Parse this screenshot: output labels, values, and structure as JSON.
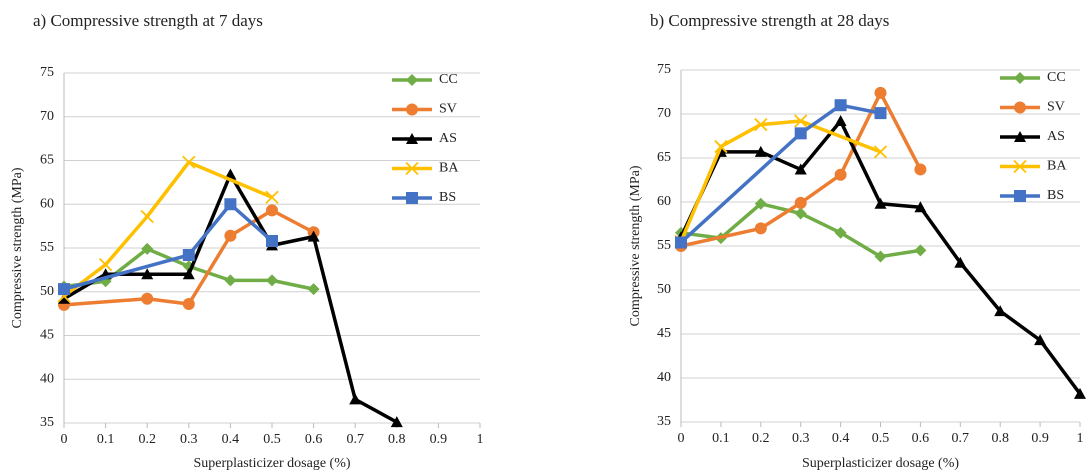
{
  "chart_data": [
    {
      "type": "line",
      "title": "a) Compressive strength at 7 days",
      "x_label": "Superplasticizer dosage (%)",
      "y_label": "Compressive strength (MPa)",
      "xlim": [
        0,
        1
      ],
      "xticks": [
        0,
        0.1,
        0.2,
        0.3,
        0.4,
        0.5,
        0.6,
        0.7,
        0.8,
        0.9,
        1
      ],
      "ylim": [
        35,
        75
      ],
      "yticks": [
        35,
        40,
        45,
        50,
        55,
        60,
        65,
        70,
        75
      ],
      "grid": true,
      "legend": "upper right",
      "series": [
        {
          "name": "CC",
          "color": "#70ad47",
          "marker": "diamond",
          "x": [
            0,
            0.1,
            0.2,
            0.3,
            0.4,
            0.5,
            0.6
          ],
          "values": [
            50.6,
            51.2,
            54.9,
            52.9,
            51.3,
            51.3,
            50.3
          ]
        },
        {
          "name": "SV",
          "color": "#ed7d31",
          "marker": "circle",
          "x": [
            0,
            0.2,
            0.3,
            0.4,
            0.5,
            0.6
          ],
          "values": [
            48.5,
            49.2,
            48.6,
            56.4,
            59.3,
            56.8
          ]
        },
        {
          "name": "AS",
          "color": "#000000",
          "marker": "triangle",
          "x": [
            0,
            0.1,
            0.2,
            0.3,
            0.4,
            0.5,
            0.6,
            0.7,
            0.8
          ],
          "values": [
            49.2,
            52.0,
            52.0,
            52.0,
            63.4,
            55.3,
            56.3,
            37.7,
            35.1
          ]
        },
        {
          "name": "BA",
          "color": "#ffc000",
          "marker": "x",
          "x": [
            0,
            0.1,
            0.2,
            0.3,
            0.5
          ],
          "values": [
            49.5,
            53.1,
            58.6,
            64.8,
            60.8
          ]
        },
        {
          "name": "BS",
          "color": "#4472c4",
          "marker": "square",
          "x": [
            0,
            0.3,
            0.4,
            0.5
          ],
          "values": [
            50.3,
            54.2,
            60.0,
            55.8
          ]
        }
      ]
    },
    {
      "type": "line",
      "title": "b) Compressive strength at 28 days",
      "x_label": "Superplasticizer dosage (%)",
      "y_label": "Compressive strength (MPa)",
      "xlim": [
        0,
        1
      ],
      "xticks": [
        0,
        0.1,
        0.2,
        0.3,
        0.4,
        0.5,
        0.6,
        0.7,
        0.8,
        0.9,
        1
      ],
      "ylim": [
        35,
        75
      ],
      "yticks": [
        35,
        40,
        45,
        50,
        55,
        60,
        65,
        70,
        75
      ],
      "grid": true,
      "legend": "upper right",
      "series": [
        {
          "name": "CC",
          "color": "#70ad47",
          "marker": "diamond",
          "x": [
            0,
            0.1,
            0.2,
            0.3,
            0.4,
            0.5,
            0.6
          ],
          "values": [
            56.5,
            55.9,
            59.8,
            58.7,
            56.5,
            53.8,
            54.5
          ]
        },
        {
          "name": "SV",
          "color": "#ed7d31",
          "marker": "circle",
          "x": [
            0,
            0.2,
            0.3,
            0.4,
            0.5,
            0.6
          ],
          "values": [
            55.0,
            57.0,
            59.9,
            63.1,
            72.4,
            63.7
          ]
        },
        {
          "name": "AS",
          "color": "#000000",
          "marker": "triangle",
          "x": [
            0,
            0.1,
            0.2,
            0.3,
            0.4,
            0.5,
            0.6,
            0.7,
            0.8,
            0.9,
            1
          ],
          "values": [
            56.0,
            65.7,
            65.7,
            63.7,
            69.2,
            59.8,
            59.4,
            53.1,
            47.6,
            44.3,
            38.2
          ]
        },
        {
          "name": "BA",
          "color": "#ffc000",
          "marker": "x",
          "x": [
            0,
            0.1,
            0.2,
            0.3,
            0.5
          ],
          "values": [
            55.5,
            66.3,
            68.8,
            69.2,
            65.7
          ]
        },
        {
          "name": "BS",
          "color": "#4472c4",
          "marker": "square",
          "x": [
            0,
            0.3,
            0.4,
            0.5
          ],
          "values": [
            55.4,
            67.8,
            71.0,
            70.1
          ]
        }
      ]
    }
  ]
}
